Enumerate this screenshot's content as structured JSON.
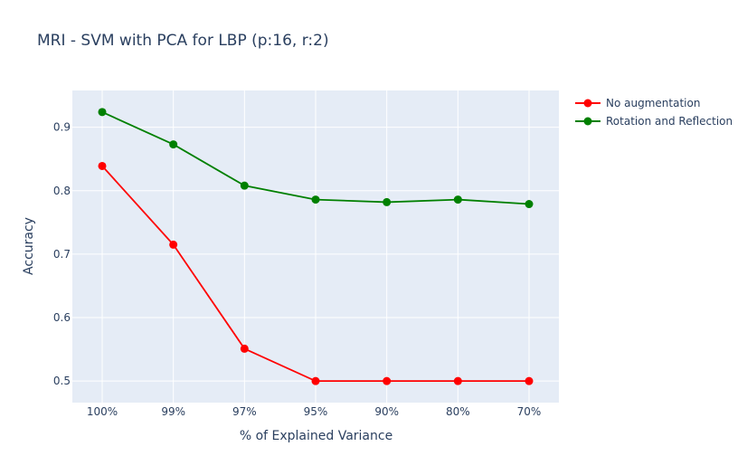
{
  "chart_data": {
    "type": "line",
    "title": "MRI - SVM with PCA for LBP (p:16, r:2)",
    "xlabel": "% of Explained Variance",
    "ylabel": "Accuracy",
    "categories": [
      "100%",
      "99%",
      "97%",
      "95%",
      "90%",
      "80%",
      "70%"
    ],
    "ylim": [
      0.466,
      0.958
    ],
    "yticks": [
      0.5,
      0.6,
      0.7,
      0.8,
      0.9
    ],
    "ytick_labels": [
      "0.5",
      "0.6",
      "0.7",
      "0.8",
      "0.9"
    ],
    "grid": true,
    "legend_position": "top-right",
    "series": [
      {
        "name": "No augmentation",
        "color": "#ff0000",
        "values": [
          0.839,
          0.715,
          0.551,
          0.5,
          0.5,
          0.5,
          0.5
        ]
      },
      {
        "name": "Rotation and Reflection",
        "color": "#008000",
        "values": [
          0.924,
          0.873,
          0.808,
          0.786,
          0.782,
          0.786,
          0.779
        ]
      }
    ]
  }
}
